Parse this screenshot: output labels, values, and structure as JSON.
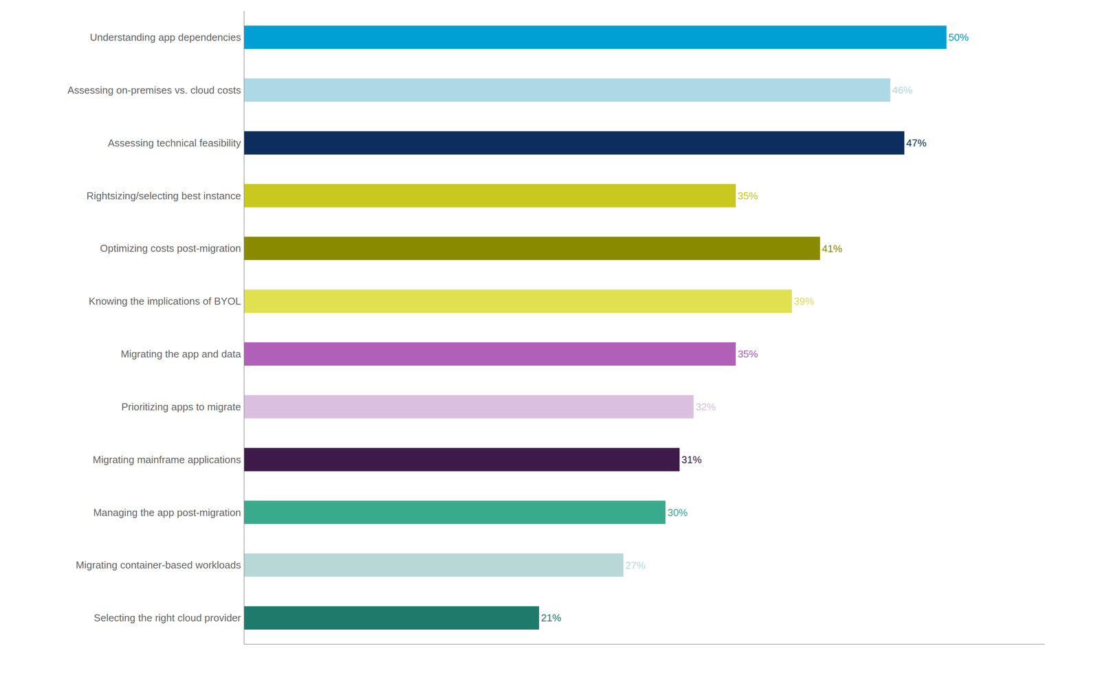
{
  "chart_data": {
    "type": "bar",
    "orientation": "horizontal",
    "categories": [
      "Selecting the right cloud provider",
      "Migrating container-based workloads",
      "Managing the app post-migration",
      "Migrating mainframe applications",
      "Prioritizing apps to migrate",
      "Migrating the app and data",
      "Knowing the implications of BYOL",
      "Optimizing costs post-migration",
      "Rightsizing/selecting best instance",
      "Assessing technical feasibility",
      "Assessing on-premises vs. cloud costs",
      "Understanding app dependencies"
    ],
    "values": [
      21,
      27,
      30,
      31,
      32,
      35,
      39,
      41,
      35,
      47,
      46,
      50
    ],
    "value_labels": [
      "21%",
      "27%",
      "30%",
      "31%",
      "32%",
      "35%",
      "39%",
      "41%",
      "35%",
      "47%",
      "46%",
      "50%"
    ],
    "colors": [
      "#1e7a6a",
      "#b8d8d8",
      "#3aaa8c",
      "#3d1a4a",
      "#dbbfe0",
      "#b060b8",
      "#e0e050",
      "#8a8a00",
      "#c8c820",
      "#0d2d5e",
      "#add8e6",
      "#009fd4"
    ],
    "xlim": [
      0,
      57
    ],
    "data_labels": true,
    "tick_labels": "y",
    "grid": false
  }
}
